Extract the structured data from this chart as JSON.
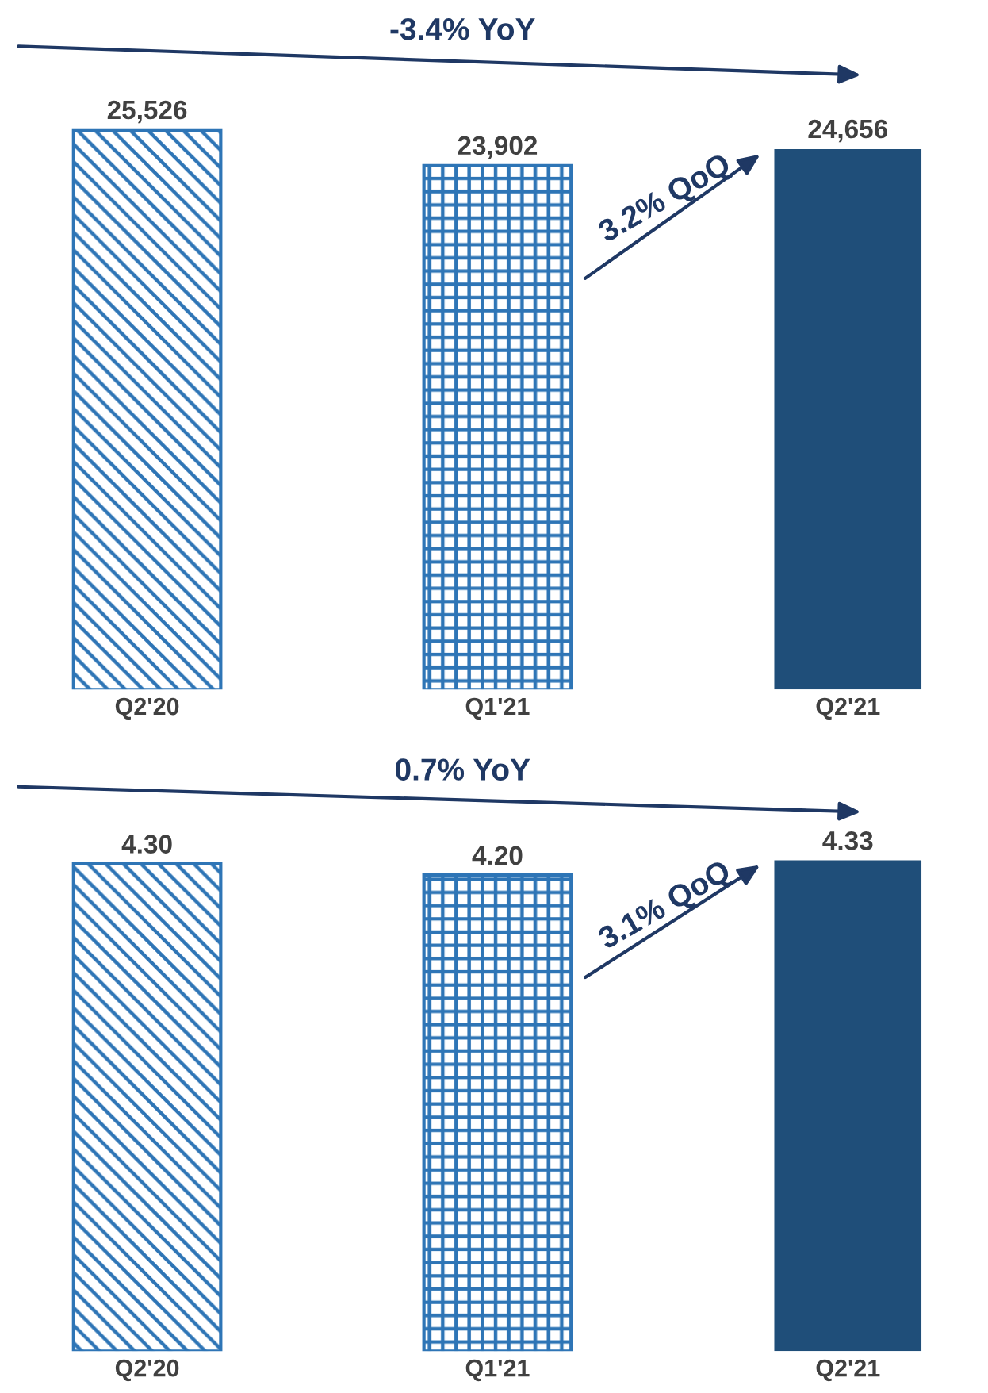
{
  "chart_data": [
    {
      "type": "bar",
      "categories": [
        "Q2'20",
        "Q1'21",
        "Q2'21"
      ],
      "values": [
        25526,
        23902,
        24656
      ],
      "value_labels": [
        "25,526",
        "23,902",
        "24,656"
      ],
      "colors": [
        "#2e75b6",
        "#2e75b6",
        "#1f4e79"
      ],
      "annotations": [
        "-3.4% YoY",
        "3.2% QoQ"
      ]
    },
    {
      "type": "bar",
      "categories": [
        "Q2'20",
        "Q1'21",
        "Q2'21"
      ],
      "values": [
        4.3,
        4.2,
        4.33
      ],
      "value_labels": [
        "4.30",
        "4.20",
        "4.33"
      ],
      "colors": [
        "#2e75b6",
        "#2e75b6",
        "#1f4e79"
      ],
      "annotations": [
        "0.7% YoY",
        "3.1% QoQ"
      ]
    }
  ]
}
